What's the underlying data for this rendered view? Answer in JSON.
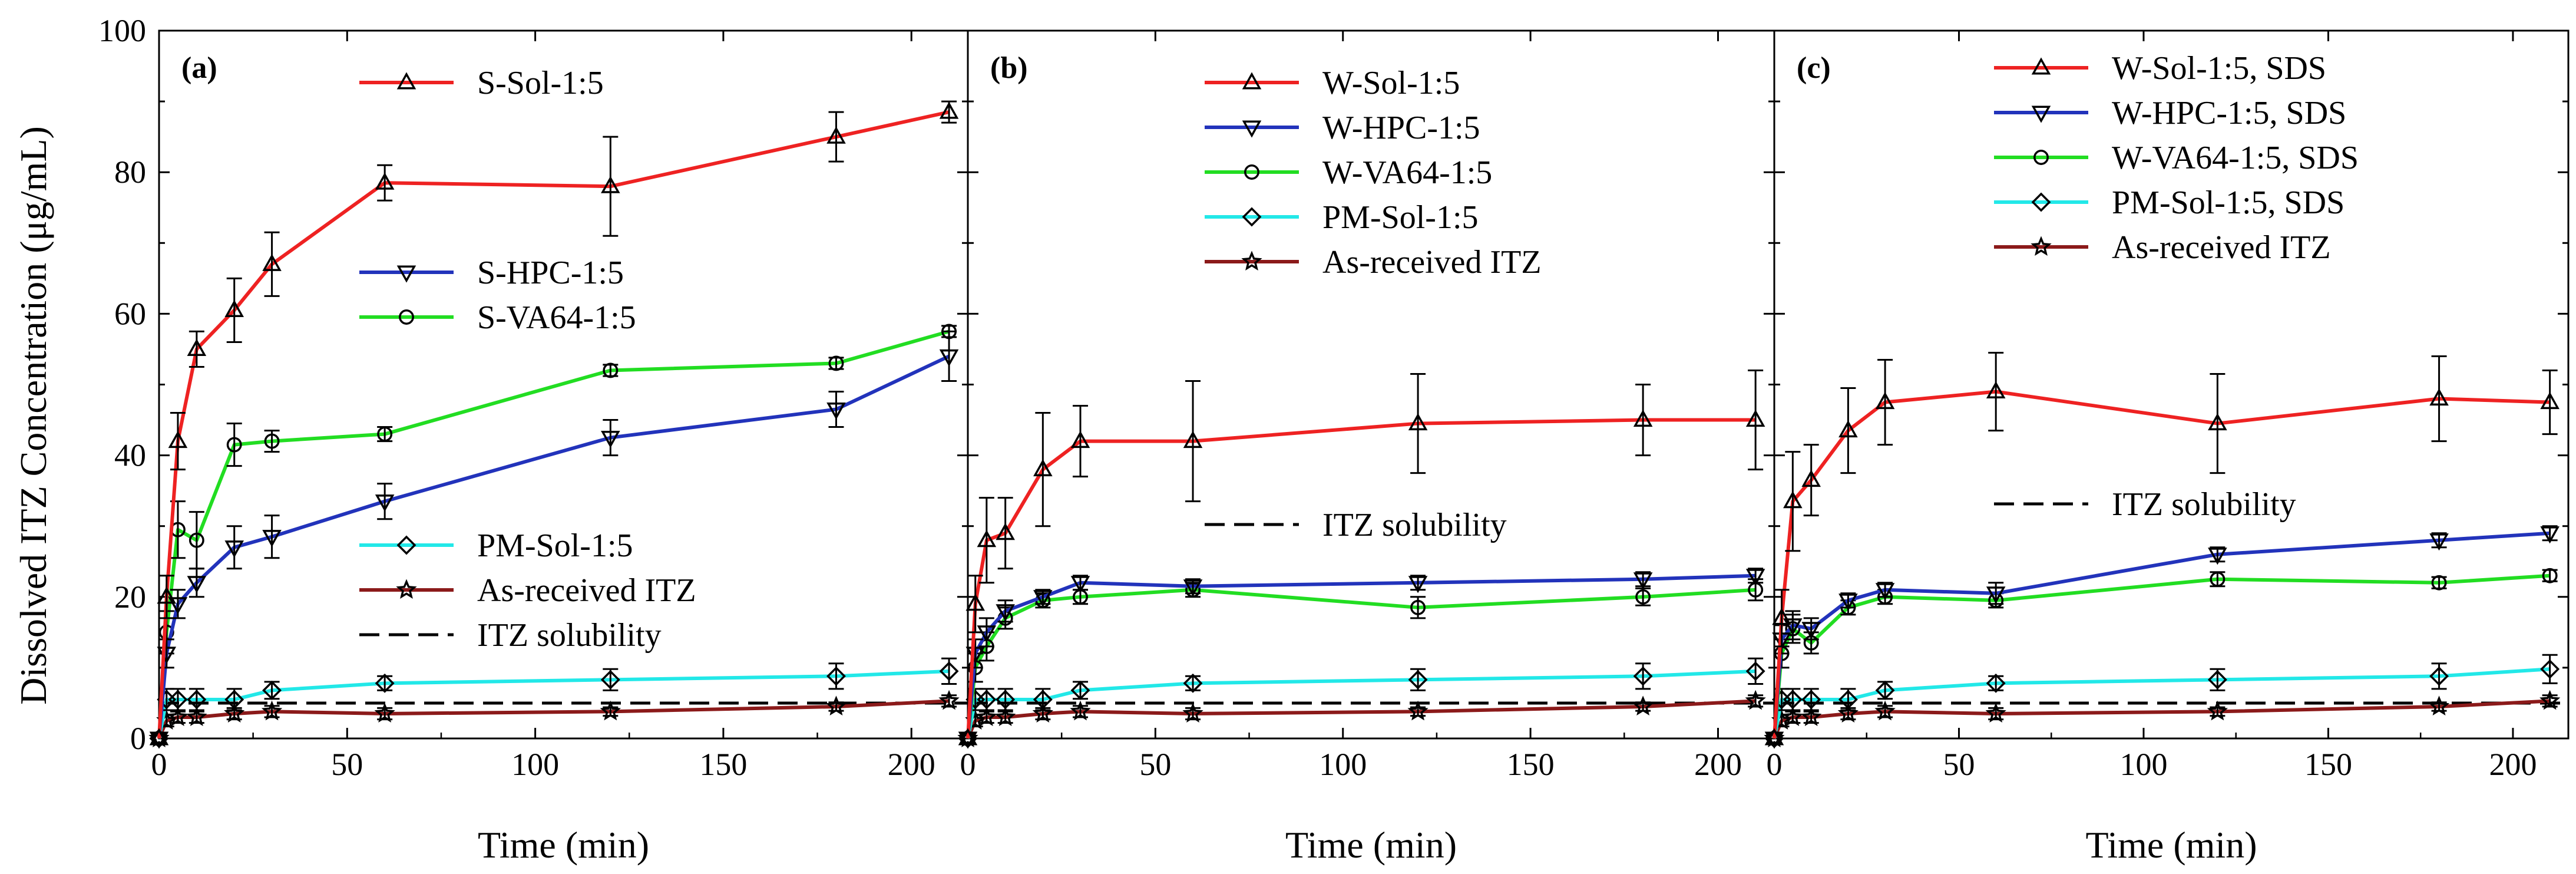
{
  "figure": {
    "ylabel": "Dissolved ITZ Concentration (μg/mL)",
    "xlabel": "Time (min)"
  },
  "colors": {
    "red": "#ee2222",
    "blue": "#2233bb",
    "green": "#22dd22",
    "cyan": "#22e8e8",
    "darkred": "#8b1a1a",
    "black": "#000000"
  },
  "chart_data": [
    {
      "type": "line",
      "panel": "(a)",
      "xlabel": "Time (min)",
      "ylabel": "Dissolved ITZ Concentration (μg/mL)",
      "xlim": [
        0,
        215
      ],
      "ylim": [
        0,
        100
      ],
      "xticks": [
        "0",
        "50",
        "100",
        "150",
        "200"
      ],
      "yticks": [
        "0",
        "20",
        "40",
        "60",
        "80",
        "100"
      ],
      "x": [
        0,
        2,
        5,
        10,
        20,
        30,
        60,
        120,
        180,
        210
      ],
      "series": [
        {
          "name": "S-Sol-1:5",
          "color": "red",
          "marker": "triangle-up",
          "values": [
            0,
            20,
            42,
            55,
            60.5,
            67,
            78.5,
            78,
            85,
            88.5
          ],
          "errors": [
            0,
            3,
            4,
            2.5,
            4.5,
            4.5,
            2.5,
            7,
            3.5,
            1.5
          ]
        },
        {
          "name": "S-HPC-1:5",
          "color": "blue",
          "marker": "triangle-down",
          "values": [
            0,
            12,
            19,
            22,
            27,
            28.5,
            33.5,
            42.5,
            46.5,
            54
          ],
          "errors": [
            0,
            2,
            2,
            2,
            3,
            3,
            2.5,
            2.5,
            2.5,
            3.5
          ]
        },
        {
          "name": "S-VA64-1:5",
          "color": "green",
          "marker": "circle",
          "values": [
            0,
            15,
            29.5,
            28,
            41.5,
            42,
            43,
            52,
            53,
            57.5
          ],
          "errors": [
            0,
            3,
            4,
            4,
            3,
            1.5,
            1,
            0.8,
            0.8,
            0.8
          ]
        },
        {
          "name": "PM-Sol-1:5",
          "color": "cyan",
          "marker": "diamond",
          "values": [
            0,
            5.5,
            5.5,
            5.5,
            5.5,
            6.8,
            7.8,
            8.3,
            8.8,
            9.5
          ],
          "errors": [
            0,
            1.5,
            1.5,
            1.5,
            1.5,
            1.2,
            1,
            1.5,
            1.8,
            1.8
          ]
        },
        {
          "name": "As-received ITZ",
          "color": "darkred",
          "marker": "star",
          "values": [
            0,
            2.5,
            3,
            3,
            3.5,
            3.8,
            3.5,
            3.8,
            4.5,
            5.3
          ],
          "errors": [
            0,
            0.8,
            0.8,
            0.8,
            0.8,
            0.8,
            0.8,
            0.6,
            0.6,
            0.8
          ]
        }
      ],
      "solubility": {
        "name": "ITZ solubility",
        "value": 5
      },
      "legend": {
        "groups": [
          {
            "pos": "top",
            "entries": [
              "S-Sol-1:5"
            ]
          },
          {
            "pos": "upper-middle",
            "entries": [
              "S-HPC-1:5",
              "S-VA64-1:5"
            ]
          },
          {
            "pos": "lower-middle",
            "entries": [
              "PM-Sol-1:5",
              "As-received ITZ",
              "ITZ solubility"
            ]
          }
        ]
      }
    },
    {
      "type": "line",
      "panel": "(b)",
      "xlabel": "Time (min)",
      "xlim": [
        0,
        215
      ],
      "ylim": [
        0,
        100
      ],
      "xticks": [
        "0",
        "50",
        "100",
        "150",
        "200"
      ],
      "x": [
        0,
        2,
        5,
        10,
        20,
        30,
        60,
        120,
        180,
        210
      ],
      "series": [
        {
          "name": "W-Sol-1:5",
          "color": "red",
          "marker": "triangle-up",
          "values": [
            0,
            19,
            28,
            29,
            38,
            42,
            42,
            44.5,
            45,
            45
          ],
          "errors": [
            0,
            4,
            6,
            5,
            8,
            5,
            8.5,
            7,
            5,
            7
          ]
        },
        {
          "name": "W-HPC-1:5",
          "color": "blue",
          "marker": "triangle-down",
          "values": [
            0,
            12,
            15,
            18,
            20,
            22,
            21.5,
            22,
            22.5,
            23
          ],
          "errors": [
            0,
            2,
            2,
            1.5,
            1,
            1,
            1,
            1,
            1,
            1
          ]
        },
        {
          "name": "W-VA64-1:5",
          "color": "green",
          "marker": "circle",
          "values": [
            0,
            10,
            13,
            17,
            19.5,
            20,
            21,
            18.5,
            20,
            21
          ],
          "errors": [
            0,
            2,
            2,
            1.5,
            1,
            1,
            1,
            1.5,
            1.2,
            1.5
          ]
        },
        {
          "name": "PM-Sol-1:5",
          "color": "cyan",
          "marker": "diamond",
          "values": [
            0,
            5.5,
            5.5,
            5.5,
            5.5,
            6.8,
            7.8,
            8.3,
            8.8,
            9.5
          ],
          "errors": [
            0,
            1.5,
            1.5,
            1.5,
            1.5,
            1.2,
            1,
            1.5,
            1.8,
            1.8
          ]
        },
        {
          "name": "As-received ITZ",
          "color": "darkred",
          "marker": "star",
          "values": [
            0,
            2.5,
            3,
            3,
            3.5,
            3.8,
            3.5,
            3.8,
            4.5,
            5.3
          ],
          "errors": [
            0,
            0.8,
            0.8,
            0.8,
            0.8,
            0.8,
            0.8,
            0.6,
            0.6,
            0.8
          ]
        }
      ],
      "solubility": {
        "name": "ITZ solubility",
        "value": 5
      },
      "legend": {
        "groups": [
          {
            "pos": "top",
            "entries": [
              "W-Sol-1:5",
              "W-HPC-1:5",
              "W-VA64-1:5",
              "PM-Sol-1:5",
              "As-received ITZ"
            ]
          },
          {
            "pos": "middle",
            "entries": [
              "ITZ solubility"
            ]
          }
        ]
      }
    },
    {
      "type": "line",
      "panel": "(c)",
      "xlabel": "Time (min)",
      "xlim": [
        0,
        215
      ],
      "ylim": [
        0,
        100
      ],
      "xticks": [
        "0",
        "50",
        "100",
        "150",
        "200"
      ],
      "x": [
        0,
        2,
        5,
        10,
        20,
        30,
        60,
        120,
        180,
        210
      ],
      "series": [
        {
          "name": "W-Sol-1:5, SDS",
          "color": "red",
          "marker": "triangle-up",
          "values": [
            0,
            17,
            33.5,
            36.5,
            43.5,
            47.5,
            49,
            44.5,
            48,
            47.5
          ],
          "errors": [
            0,
            4,
            7,
            5,
            6,
            6,
            5.5,
            7,
            6,
            4.5
          ]
        },
        {
          "name": "W-HPC-1:5, SDS",
          "color": "blue",
          "marker": "triangle-down",
          "values": [
            0,
            14,
            16,
            15.5,
            19.5,
            21,
            20.5,
            26,
            28,
            29
          ],
          "errors": [
            0,
            2,
            2,
            1.5,
            1,
            1,
            1.5,
            1,
            1,
            1
          ]
        },
        {
          "name": "W-VA64-1:5, SDS",
          "color": "green",
          "marker": "circle",
          "values": [
            0,
            12,
            15.5,
            13.5,
            18.5,
            20,
            19.5,
            22.5,
            22,
            23
          ],
          "errors": [
            0,
            2,
            2,
            1.5,
            1,
            1,
            1,
            1,
            0.8,
            0.8
          ]
        },
        {
          "name": "PM-Sol-1:5, SDS",
          "color": "cyan",
          "marker": "diamond",
          "values": [
            0,
            5.5,
            5.5,
            5.5,
            5.5,
            6.8,
            7.8,
            8.3,
            8.8,
            9.8
          ],
          "errors": [
            0,
            1.5,
            1.5,
            1.5,
            1.5,
            1.2,
            1,
            1.5,
            1.8,
            2
          ]
        },
        {
          "name": "As-received ITZ",
          "color": "darkred",
          "marker": "star",
          "values": [
            0,
            2.5,
            3,
            3,
            3.5,
            3.8,
            3.5,
            3.8,
            4.5,
            5.3
          ],
          "errors": [
            0,
            0.8,
            0.8,
            0.8,
            0.8,
            0.8,
            0.8,
            0.6,
            0.6,
            0.8
          ]
        }
      ],
      "solubility": {
        "name": "ITZ solubility",
        "value": 5
      },
      "legend": {
        "groups": [
          {
            "pos": "top",
            "entries": [
              "W-Sol-1:5, SDS",
              "W-HPC-1:5, SDS",
              "W-VA64-1:5, SDS",
              "PM-Sol-1:5, SDS",
              "As-received ITZ"
            ]
          },
          {
            "pos": "middle",
            "entries": [
              "ITZ solubility"
            ]
          }
        ]
      }
    }
  ]
}
